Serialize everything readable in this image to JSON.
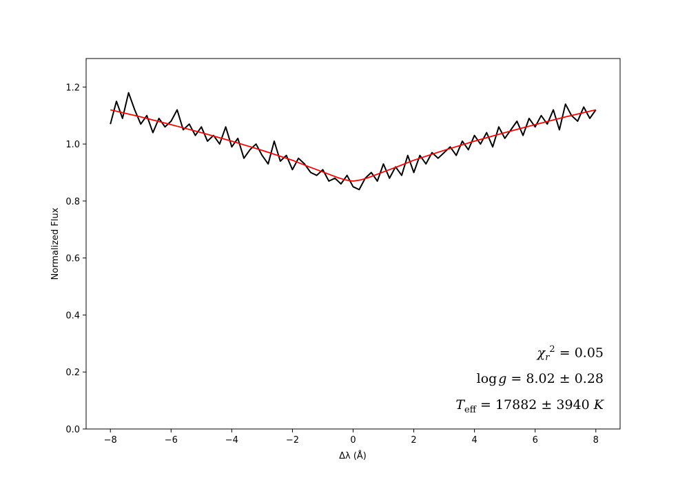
{
  "chart_data": {
    "type": "line",
    "xlabel": "Δλ (Å)",
    "ylabel": "Normalized Flux",
    "xlim": [
      -8.8,
      8.8
    ],
    "ylim": [
      0.0,
      1.3
    ],
    "xticks": [
      -8,
      -6,
      -4,
      -2,
      0,
      2,
      4,
      6,
      8
    ],
    "xtick_labels": [
      "−8",
      "−6",
      "−4",
      "−2",
      "0",
      "2",
      "4",
      "6",
      "8"
    ],
    "yticks": [
      0.0,
      0.2,
      0.4,
      0.6,
      0.8,
      1.0,
      1.2
    ],
    "ytick_labels": [
      "0.0",
      "0.2",
      "0.4",
      "0.6",
      "0.8",
      "1.0",
      "1.2"
    ],
    "grid": false,
    "series": [
      {
        "color": "#000000",
        "style": "observed spectrum (noisy)",
        "x": [
          -8.0,
          -7.8,
          -7.6,
          -7.4,
          -7.2,
          -7.0,
          -6.8,
          -6.6,
          -6.4,
          -6.2,
          -6.0,
          -5.8,
          -5.6,
          -5.4,
          -5.2,
          -5.0,
          -4.8,
          -4.6,
          -4.4,
          -4.2,
          -4.0,
          -3.8,
          -3.6,
          -3.4,
          -3.2,
          -3.0,
          -2.8,
          -2.6,
          -2.4,
          -2.2,
          -2.0,
          -1.8,
          -1.6,
          -1.4,
          -1.2,
          -1.0,
          -0.8,
          -0.6,
          -0.4,
          -0.2,
          0.0,
          0.2,
          0.4,
          0.6,
          0.8,
          1.0,
          1.2,
          1.4,
          1.6,
          1.8,
          2.0,
          2.2,
          2.4,
          2.6,
          2.8,
          3.0,
          3.2,
          3.4,
          3.6,
          3.8,
          4.0,
          4.2,
          4.4,
          4.6,
          4.8,
          5.0,
          5.2,
          5.4,
          5.6,
          5.8,
          6.0,
          6.2,
          6.4,
          6.6,
          6.8,
          7.0,
          7.2,
          7.4,
          7.6,
          7.8,
          8.0
        ],
        "y": [
          1.07,
          1.15,
          1.09,
          1.18,
          1.12,
          1.07,
          1.1,
          1.04,
          1.09,
          1.06,
          1.08,
          1.12,
          1.05,
          1.07,
          1.03,
          1.06,
          1.01,
          1.03,
          1.0,
          1.06,
          0.99,
          1.02,
          0.95,
          0.98,
          1.0,
          0.96,
          0.93,
          1.01,
          0.94,
          0.96,
          0.91,
          0.95,
          0.93,
          0.9,
          0.89,
          0.91,
          0.87,
          0.88,
          0.86,
          0.89,
          0.85,
          0.84,
          0.88,
          0.9,
          0.87,
          0.93,
          0.88,
          0.92,
          0.89,
          0.96,
          0.9,
          0.96,
          0.93,
          0.97,
          0.95,
          0.97,
          0.99,
          0.96,
          1.01,
          0.98,
          1.03,
          1.0,
          1.04,
          0.99,
          1.06,
          1.02,
          1.05,
          1.08,
          1.03,
          1.09,
          1.06,
          1.1,
          1.07,
          1.12,
          1.05,
          1.14,
          1.1,
          1.08,
          1.13,
          1.09,
          1.12
        ]
      },
      {
        "color": "#ff0000",
        "style": "model fit",
        "x": [
          -8.0,
          -7.0,
          -6.0,
          -5.0,
          -4.0,
          -3.0,
          -2.0,
          -1.5,
          -1.0,
          -0.5,
          -0.25,
          0.0,
          0.25,
          0.5,
          1.0,
          1.5,
          2.0,
          3.0,
          4.0,
          5.0,
          6.0,
          7.0,
          8.0
        ],
        "y": [
          1.12,
          1.095,
          1.068,
          1.04,
          1.01,
          0.978,
          0.943,
          0.922,
          0.902,
          0.882,
          0.874,
          0.87,
          0.874,
          0.882,
          0.902,
          0.922,
          0.943,
          0.978,
          1.01,
          1.04,
          1.068,
          1.095,
          1.12
        ]
      }
    ],
    "annotations": {
      "chi2_value": "0.05",
      "logg_value": "8.02 ± 0.28",
      "teff_value": "17882 ± 3940"
    }
  }
}
